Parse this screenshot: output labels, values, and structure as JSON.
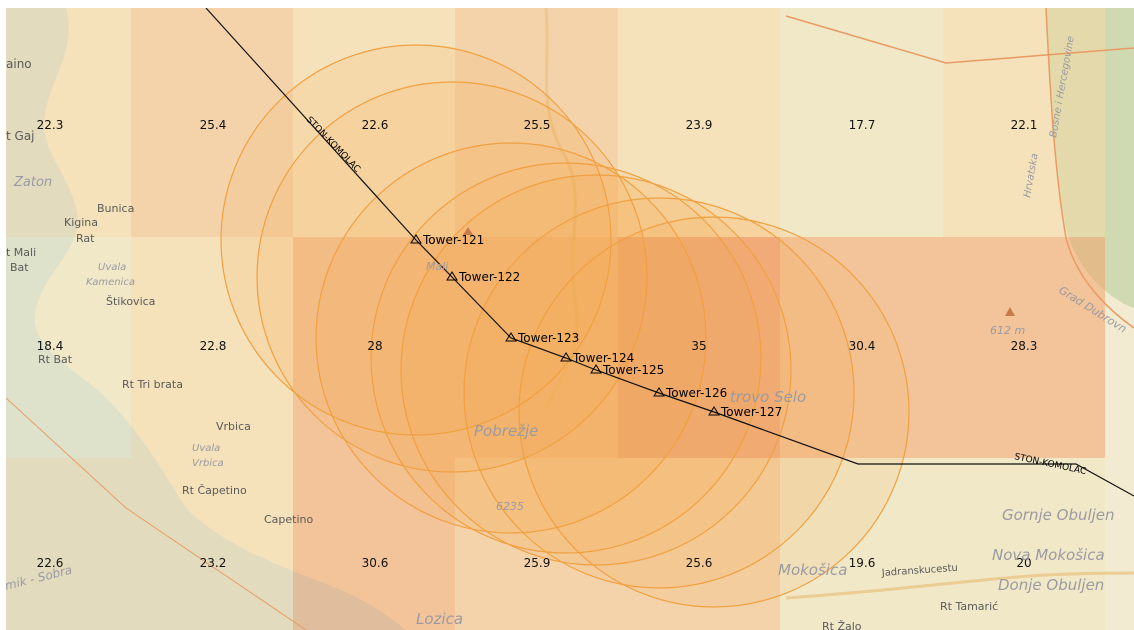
{
  "colors": {
    "land": "#f3ead2",
    "sea": "#aad3df",
    "low_heat": "#f6d9a6",
    "mid_heat": "#f2a46c",
    "high_heat": "#ec7a4e",
    "buffer_stroke": "#f0a040",
    "buffer_fill": "#f7a542",
    "power_line": "#111111",
    "border_line": "#e89b63",
    "greenland": "#cfd9b2"
  },
  "grid": {
    "rows": [
      [
        "22.3",
        "25.4",
        "22.6",
        "25.5",
        "23.9",
        "17.7",
        "22.1"
      ],
      [
        "18.4",
        "22.8",
        "28",
        "",
        "35",
        "30.4",
        "28.3"
      ],
      [
        "22.6",
        "23.2",
        "30.6",
        "25.9",
        "25.6",
        "19.6",
        "20"
      ]
    ]
  },
  "towers": [
    {
      "id": "Tower-121"
    },
    {
      "id": "Tower-122"
    },
    {
      "id": "Tower-123"
    },
    {
      "id": "Tower-124"
    },
    {
      "id": "Tower-125"
    },
    {
      "id": "Tower-126"
    },
    {
      "id": "Tower-127"
    }
  ],
  "power_line": {
    "name": "STON-KOMOLAC"
  },
  "places": {
    "aino": "aino",
    "gaj": "t Gaj",
    "zaton": "Zaton",
    "bunica": "Bunica",
    "kigina": "Kigina",
    "rat": "Rat",
    "mali": "t Mali",
    "bat": "Bat",
    "uvala": "Uvala",
    "kamenica": "Kamenica",
    "stikovica": "Štikovica",
    "rt_bat": "Rt Bat",
    "tri_brata": "Rt Tri brata",
    "vrbica": "Vrbica",
    "uvala2": "Uvala",
    "vrbica2": "Vrbica",
    "capetino_rt": "Rt Čapetino",
    "capetino": "Capetino",
    "lozica": "Lozica",
    "pobrezje": "Pobrežje",
    "petrovo": "trovo Selo",
    "mokosica": "Mokošica",
    "gornje": "Gornje Obuljen",
    "nova": "Nova Mokošica",
    "donje": "Donje Obuljen",
    "tamaric": "Rt Tamarić",
    "zalo": "Rt Žalo",
    "jadranska": "Jadranskucestu",
    "road_6235": "6235",
    "peak": "612 m",
    "grad": "Grad Dubrovn",
    "hrvatska": "Hrvatska",
    "bosna": "Bosne i Hercegovine",
    "sea_lbl": "mik - Sobra",
    "mali2": "Mali"
  }
}
